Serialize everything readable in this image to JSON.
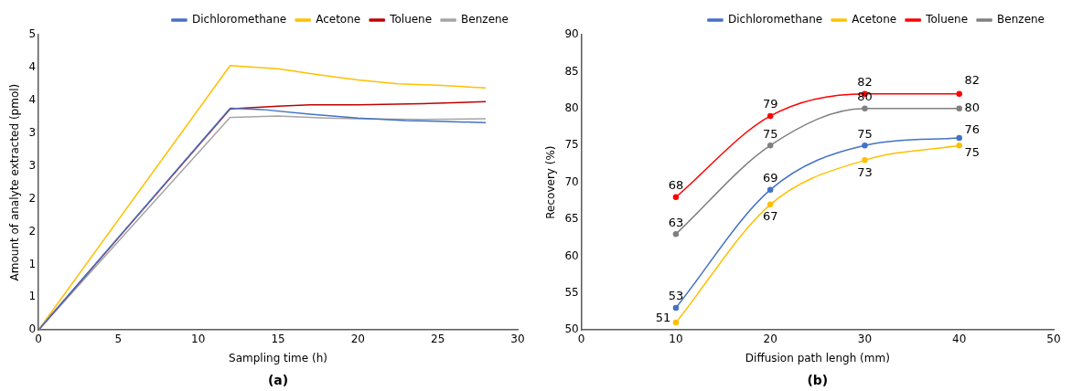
{
  "chart_data": [
    {
      "type": "line",
      "xlabel": "Sampling time (h)",
      "ylabel": "Amount of analyte extracted (pmol)",
      "annotations": [
        "(a)"
      ],
      "legend": "top",
      "grid": false,
      "marker": "none",
      "xlim": [
        0,
        30
      ],
      "xticks": [
        0,
        5,
        10,
        15,
        20,
        25,
        30
      ],
      "ylim": [
        0,
        4.5
      ],
      "yticks": [
        0,
        {
          "value": 0.5,
          "label": "1"
        },
        1,
        {
          "value": 1.5,
          "label": "2"
        },
        2,
        {
          "value": 2.5,
          "label": "3"
        },
        3,
        {
          "value": 3.5,
          "label": "4"
        },
        4,
        {
          "value": 4.5,
          "label": "5"
        }
      ],
      "series": [
        {
          "name": "Dichloromethane",
          "color": "#4472c4",
          "x": [
            0,
            12,
            14,
            17,
            20,
            23,
            25,
            28
          ],
          "values": [
            0,
            3.38,
            3.36,
            3.29,
            3.23,
            3.19,
            3.18,
            3.16
          ]
        },
        {
          "name": "Acetone",
          "color": "#ffc000",
          "x": [
            0,
            12,
            15,
            17.5,
            20,
            22.5,
            25,
            28
          ],
          "values": [
            0,
            4.03,
            3.98,
            3.89,
            3.81,
            3.75,
            3.73,
            3.69
          ]
        },
        {
          "name": "Toluene",
          "color": "#c00000",
          "x": [
            0,
            12,
            15,
            17,
            20,
            24,
            28
          ],
          "values": [
            0,
            3.37,
            3.41,
            3.43,
            3.43,
            3.45,
            3.48
          ]
        },
        {
          "name": "Benzene",
          "color": "#a5a5a5",
          "x": [
            0,
            12,
            15,
            18,
            20,
            24,
            28
          ],
          "values": [
            0,
            3.24,
            3.26,
            3.23,
            3.22,
            3.21,
            3.22
          ]
        }
      ]
    },
    {
      "type": "line",
      "xlabel": "Diffusion path lengh (mm)",
      "ylabel": "Recovery (%)",
      "annotations": [
        "(b)"
      ],
      "legend": "top",
      "grid": false,
      "marker": "circle",
      "data_labels": true,
      "x": [
        10,
        20,
        30,
        40
      ],
      "xlim": [
        0,
        50
      ],
      "xticks": [
        0,
        10,
        20,
        30,
        40,
        50
      ],
      "ylim": [
        50,
        90
      ],
      "yticks": [
        50,
        55,
        60,
        65,
        70,
        75,
        80,
        85,
        90
      ],
      "series": [
        {
          "name": "Dichloromethane",
          "color": "#4472c4",
          "values": [
            53,
            69,
            75,
            76
          ]
        },
        {
          "name": "Acetone",
          "color": "#ffc000",
          "values": [
            51,
            67,
            73,
            75
          ]
        },
        {
          "name": "Toluene",
          "color": "#ff0000",
          "values": [
            68,
            79,
            82,
            82
          ]
        },
        {
          "name": "Benzene",
          "color": "#808080",
          "values": [
            63,
            75,
            80,
            80
          ]
        }
      ]
    }
  ]
}
